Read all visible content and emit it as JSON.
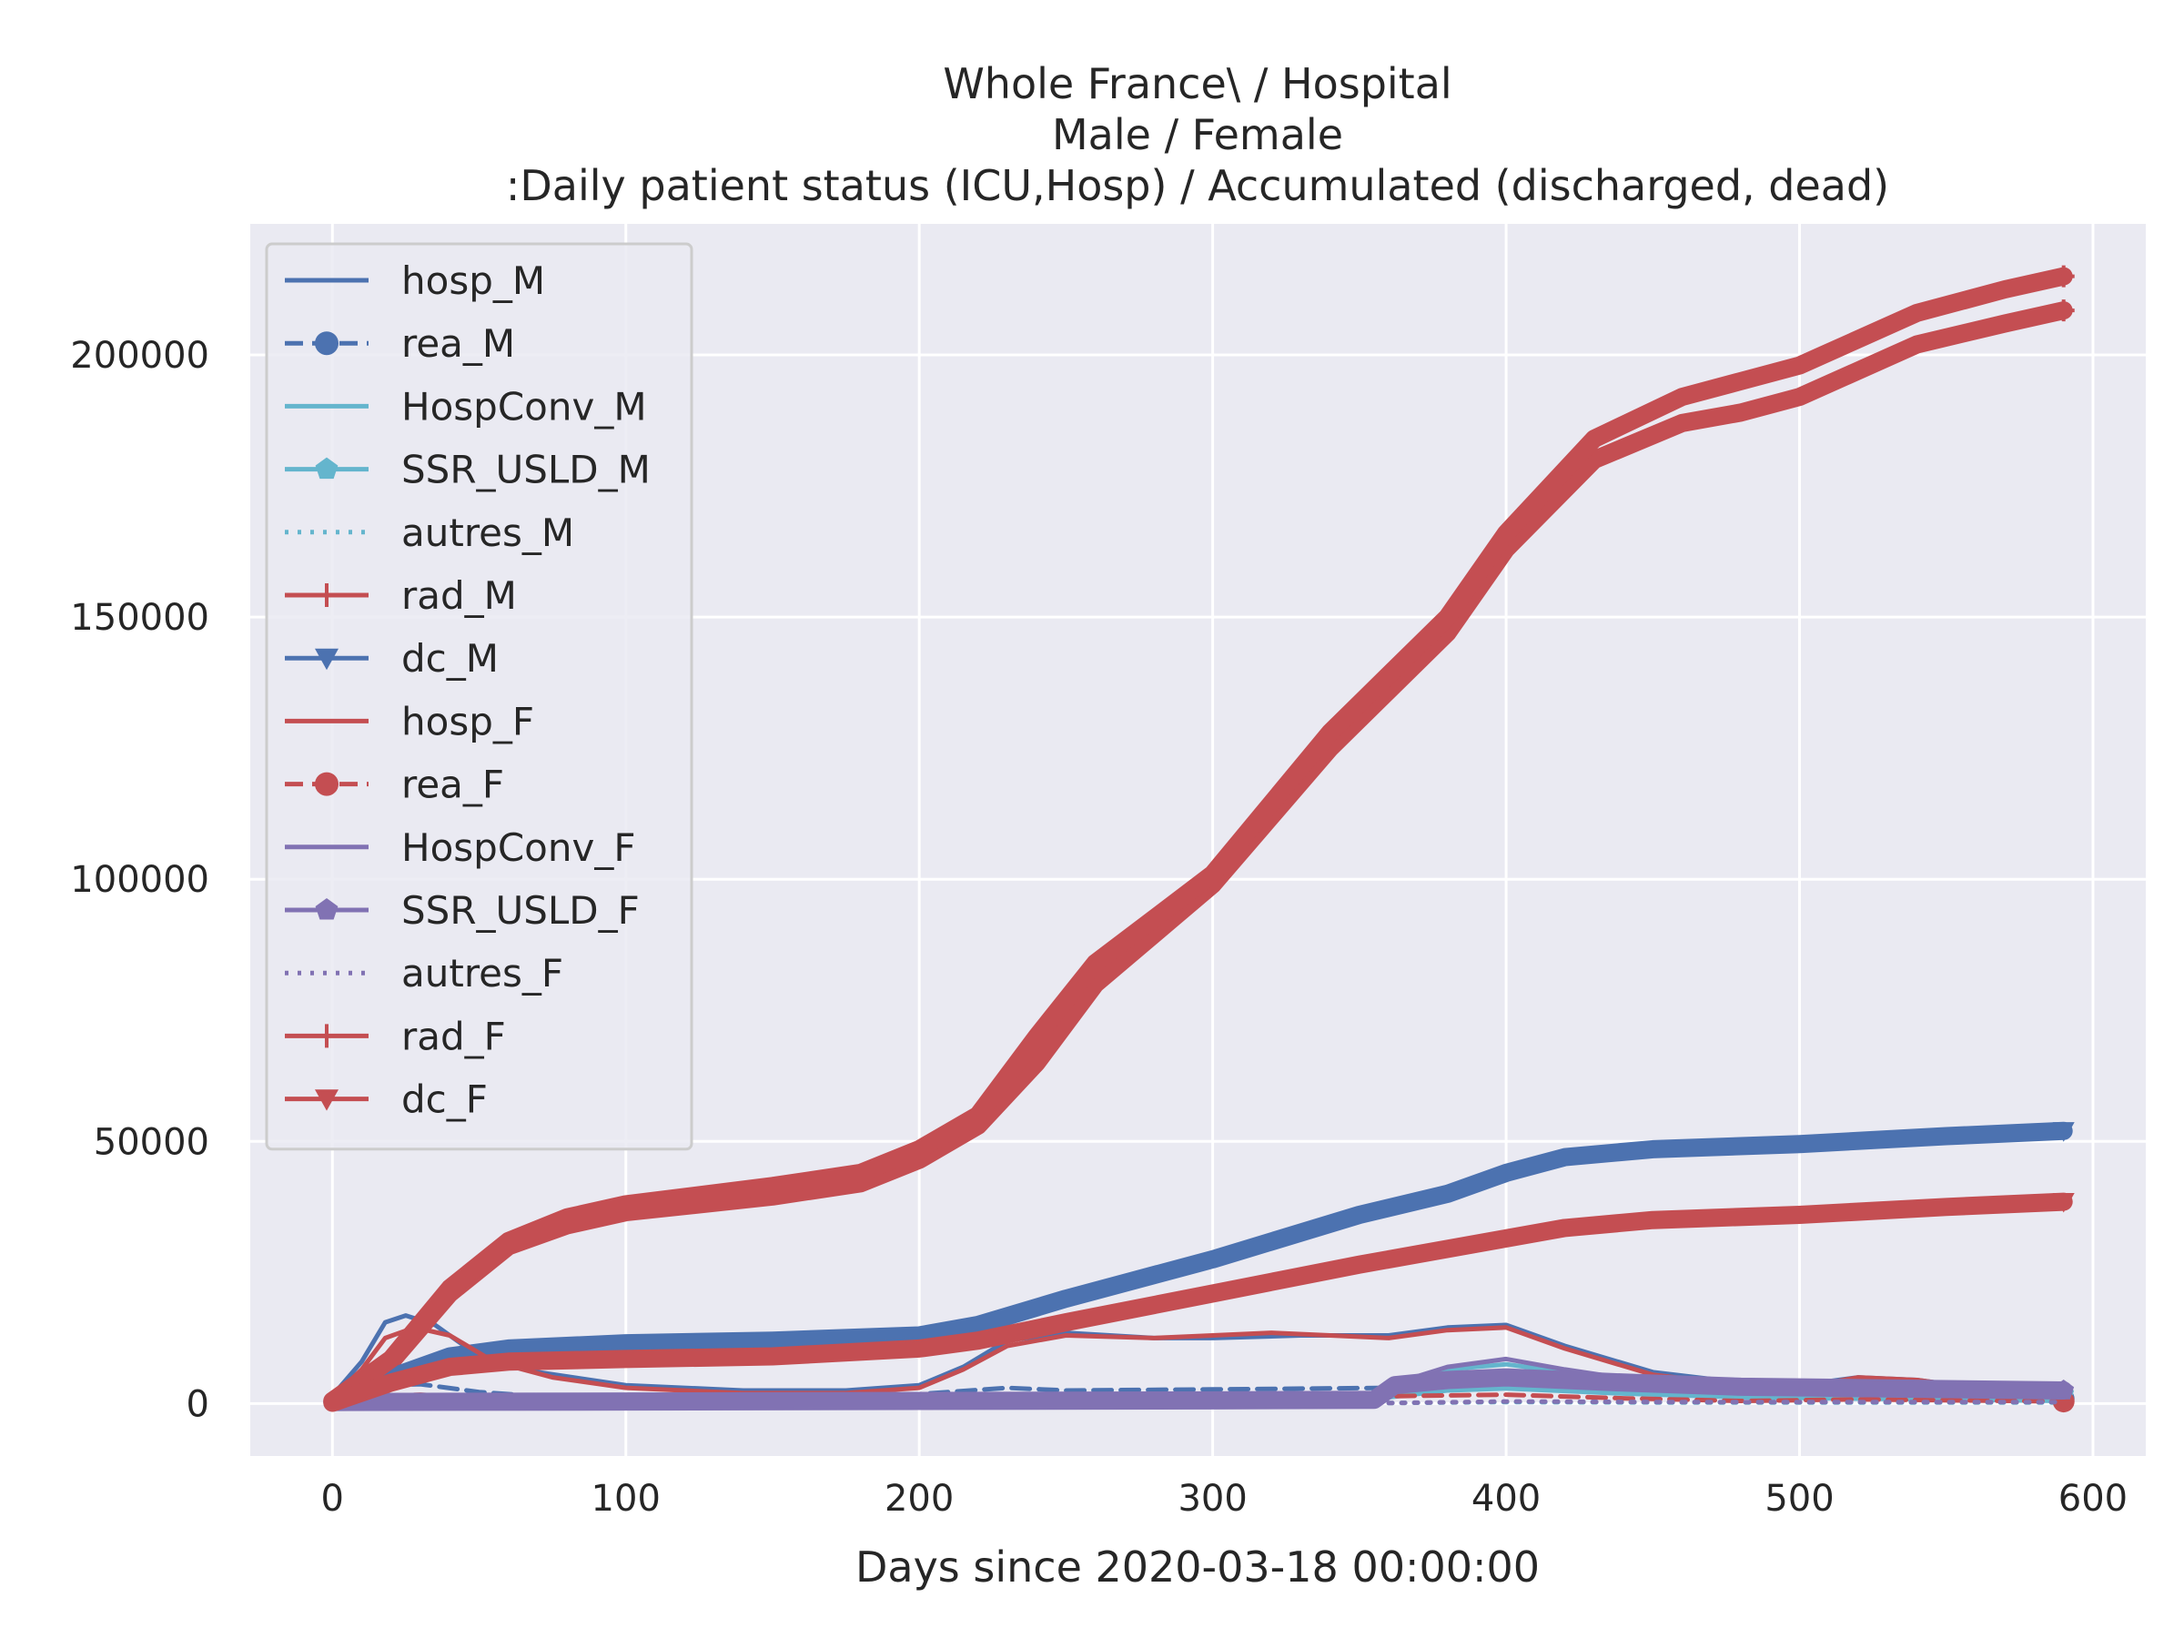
{
  "chart_data": {
    "type": "line",
    "title": [
      "Whole France\\ / Hospital",
      "Male / Female",
      ":Daily patient status (ICU,Hosp) / Accumulated (discharged, dead)"
    ],
    "xlabel": "Days since 2020-03-18 00:00:00",
    "ylabel": "",
    "xlim": [
      -28,
      618
    ],
    "ylim": [
      -10000,
      225000
    ],
    "xticks": [
      0,
      100,
      200,
      300,
      400,
      500,
      600
    ],
    "yticks": [
      0,
      50000,
      100000,
      150000,
      200000
    ],
    "grid": true,
    "legend_position": "top-left",
    "series": [
      {
        "name": "hosp_M",
        "color": "#4c72b0",
        "style": "solid",
        "marker": "none",
        "points": [
          [
            0,
            1500
          ],
          [
            10,
            8000
          ],
          [
            18,
            15500
          ],
          [
            25,
            16800
          ],
          [
            35,
            15000
          ],
          [
            50,
            9000
          ],
          [
            70,
            6000
          ],
          [
            100,
            3500
          ],
          [
            140,
            2500
          ],
          [
            175,
            2500
          ],
          [
            200,
            3500
          ],
          [
            215,
            7000
          ],
          [
            230,
            12000
          ],
          [
            250,
            13500
          ],
          [
            280,
            12500
          ],
          [
            300,
            12500
          ],
          [
            330,
            13000
          ],
          [
            360,
            13000
          ],
          [
            380,
            14500
          ],
          [
            400,
            15000
          ],
          [
            420,
            11000
          ],
          [
            450,
            6000
          ],
          [
            480,
            4000
          ],
          [
            500,
            3500
          ],
          [
            520,
            5000
          ],
          [
            540,
            4500
          ],
          [
            560,
            3000
          ],
          [
            590,
            1500
          ]
        ]
      },
      {
        "name": "rea_M",
        "color": "#4c72b0",
        "style": "dashed",
        "marker": "circle",
        "points": [
          [
            0,
            500
          ],
          [
            20,
            3500
          ],
          [
            30,
            3700
          ],
          [
            50,
            2200
          ],
          [
            80,
            1000
          ],
          [
            120,
            600
          ],
          [
            180,
            800
          ],
          [
            200,
            1800
          ],
          [
            230,
            3000
          ],
          [
            250,
            2500
          ],
          [
            300,
            2700
          ],
          [
            360,
            3000
          ],
          [
            400,
            3800
          ],
          [
            440,
            2500
          ],
          [
            480,
            1500
          ],
          [
            520,
            1700
          ],
          [
            590,
            900
          ]
        ]
      },
      {
        "name": "HospConv_M",
        "color": "#64b5cd",
        "style": "solid",
        "marker": "none",
        "points": [
          [
            360,
            3500
          ],
          [
            380,
            6500
          ],
          [
            400,
            7500
          ],
          [
            420,
            6000
          ],
          [
            450,
            3800
          ],
          [
            480,
            2500
          ],
          [
            520,
            3000
          ],
          [
            590,
            1500
          ]
        ]
      },
      {
        "name": "SSR_USLD_M",
        "color": "#64b5cd",
        "style": "solid",
        "marker": "pentagon",
        "points": [
          [
            360,
            2500
          ],
          [
            380,
            3800
          ],
          [
            400,
            4200
          ],
          [
            440,
            3200
          ],
          [
            480,
            2500
          ],
          [
            590,
            1800
          ]
        ]
      },
      {
        "name": "autres_M",
        "color": "#64b5cd",
        "style": "dotted",
        "marker": "none",
        "points": [
          [
            360,
            100
          ],
          [
            400,
            300
          ],
          [
            450,
            200
          ],
          [
            590,
            200
          ]
        ]
      },
      {
        "name": "rad_M",
        "color": "#c44e52",
        "style": "solid",
        "marker": "plus",
        "points": [
          [
            0,
            500
          ],
          [
            20,
            8000
          ],
          [
            40,
            21000
          ],
          [
            60,
            30000
          ],
          [
            80,
            34000
          ],
          [
            100,
            36500
          ],
          [
            150,
            39500
          ],
          [
            180,
            42000
          ],
          [
            200,
            46500
          ],
          [
            220,
            53000
          ],
          [
            240,
            65000
          ],
          [
            260,
            80000
          ],
          [
            300,
            99000
          ],
          [
            340,
            125000
          ],
          [
            380,
            147000
          ],
          [
            400,
            163000
          ],
          [
            430,
            180000
          ],
          [
            460,
            187000
          ],
          [
            480,
            189000
          ],
          [
            500,
            192000
          ],
          [
            540,
            202000
          ],
          [
            570,
            206000
          ],
          [
            590,
            208500
          ]
        ]
      },
      {
        "name": "dc_M",
        "color": "#4c72b0",
        "style": "solid",
        "marker": "triangle-down",
        "points": [
          [
            0,
            200
          ],
          [
            20,
            5000
          ],
          [
            40,
            9000
          ],
          [
            60,
            10500
          ],
          [
            100,
            11500
          ],
          [
            150,
            12000
          ],
          [
            200,
            13000
          ],
          [
            220,
            15000
          ],
          [
            250,
            20000
          ],
          [
            300,
            27500
          ],
          [
            350,
            36000
          ],
          [
            380,
            40000
          ],
          [
            400,
            44000
          ],
          [
            420,
            47000
          ],
          [
            450,
            48500
          ],
          [
            500,
            49500
          ],
          [
            550,
            51000
          ],
          [
            590,
            52000
          ]
        ]
      },
      {
        "name": "hosp_F",
        "color": "#c44e52",
        "style": "solid",
        "marker": "none",
        "points": [
          [
            0,
            1200
          ],
          [
            10,
            6500
          ],
          [
            18,
            12500
          ],
          [
            28,
            14500
          ],
          [
            40,
            13000
          ],
          [
            55,
            8000
          ],
          [
            75,
            5000
          ],
          [
            100,
            3000
          ],
          [
            140,
            2000
          ],
          [
            175,
            2000
          ],
          [
            200,
            3000
          ],
          [
            215,
            6500
          ],
          [
            230,
            11000
          ],
          [
            250,
            13000
          ],
          [
            280,
            12500
          ],
          [
            300,
            13000
          ],
          [
            320,
            13500
          ],
          [
            340,
            13000
          ],
          [
            360,
            12500
          ],
          [
            380,
            14000
          ],
          [
            400,
            14500
          ],
          [
            420,
            10500
          ],
          [
            450,
            5500
          ],
          [
            480,
            3500
          ],
          [
            500,
            3000
          ],
          [
            520,
            5000
          ],
          [
            540,
            4500
          ],
          [
            560,
            3000
          ],
          [
            590,
            1500
          ]
        ]
      },
      {
        "name": "rea_F",
        "color": "#c44e52",
        "style": "dashed",
        "marker": "circle",
        "points": [
          [
            0,
            300
          ],
          [
            20,
            1500
          ],
          [
            30,
            1700
          ],
          [
            50,
            1000
          ],
          [
            80,
            500
          ],
          [
            150,
            300
          ],
          [
            200,
            800
          ],
          [
            230,
            1500
          ],
          [
            300,
            1300
          ],
          [
            360,
            1400
          ],
          [
            400,
            1700
          ],
          [
            440,
            1000
          ],
          [
            480,
            500
          ],
          [
            520,
            800
          ],
          [
            590,
            400
          ]
        ]
      },
      {
        "name": "HospConv_F",
        "color": "#8172b3",
        "style": "solid",
        "marker": "none",
        "points": [
          [
            360,
            3500
          ],
          [
            380,
            7000
          ],
          [
            400,
            8500
          ],
          [
            420,
            6500
          ],
          [
            450,
            4000
          ],
          [
            480,
            2800
          ],
          [
            520,
            3200
          ],
          [
            590,
            1800
          ]
        ]
      },
      {
        "name": "SSR_USLD_F",
        "color": "#8172b3",
        "style": "solid",
        "marker": "pentagon",
        "points": [
          [
            0,
            300
          ],
          [
            100,
            400
          ],
          [
            200,
            500
          ],
          [
            300,
            600
          ],
          [
            355,
            700
          ],
          [
            362,
            3500
          ],
          [
            380,
            4500
          ],
          [
            400,
            5000
          ],
          [
            440,
            4000
          ],
          [
            480,
            3200
          ],
          [
            590,
            2500
          ]
        ]
      },
      {
        "name": "autres_F",
        "color": "#8172b3",
        "style": "dotted",
        "marker": "none",
        "points": [
          [
            360,
            100
          ],
          [
            400,
            400
          ],
          [
            450,
            300
          ],
          [
            590,
            300
          ]
        ]
      },
      {
        "name": "rad_F",
        "color": "#c44e52",
        "style": "solid",
        "marker": "plus",
        "points": [
          [
            0,
            500
          ],
          [
            20,
            8500
          ],
          [
            40,
            22000
          ],
          [
            60,
            31000
          ],
          [
            80,
            35500
          ],
          [
            100,
            38000
          ],
          [
            150,
            41500
          ],
          [
            180,
            44000
          ],
          [
            200,
            48500
          ],
          [
            220,
            55000
          ],
          [
            240,
            70000
          ],
          [
            260,
            84000
          ],
          [
            300,
            101000
          ],
          [
            340,
            128000
          ],
          [
            380,
            150000
          ],
          [
            400,
            166000
          ],
          [
            430,
            184000
          ],
          [
            460,
            192000
          ],
          [
            480,
            195000
          ],
          [
            500,
            198000
          ],
          [
            540,
            208000
          ],
          [
            570,
            212500
          ],
          [
            590,
            215000
          ]
        ]
      },
      {
        "name": "dc_F",
        "color": "#c44e52",
        "style": "solid",
        "marker": "triangle-down",
        "points": [
          [
            0,
            150
          ],
          [
            20,
            4000
          ],
          [
            40,
            7000
          ],
          [
            60,
            8000
          ],
          [
            100,
            8500
          ],
          [
            150,
            9000
          ],
          [
            200,
            10500
          ],
          [
            220,
            12000
          ],
          [
            250,
            15500
          ],
          [
            300,
            21000
          ],
          [
            350,
            26500
          ],
          [
            400,
            31500
          ],
          [
            420,
            33500
          ],
          [
            450,
            35000
          ],
          [
            500,
            36000
          ],
          [
            550,
            37500
          ],
          [
            590,
            38500
          ]
        ]
      }
    ]
  }
}
